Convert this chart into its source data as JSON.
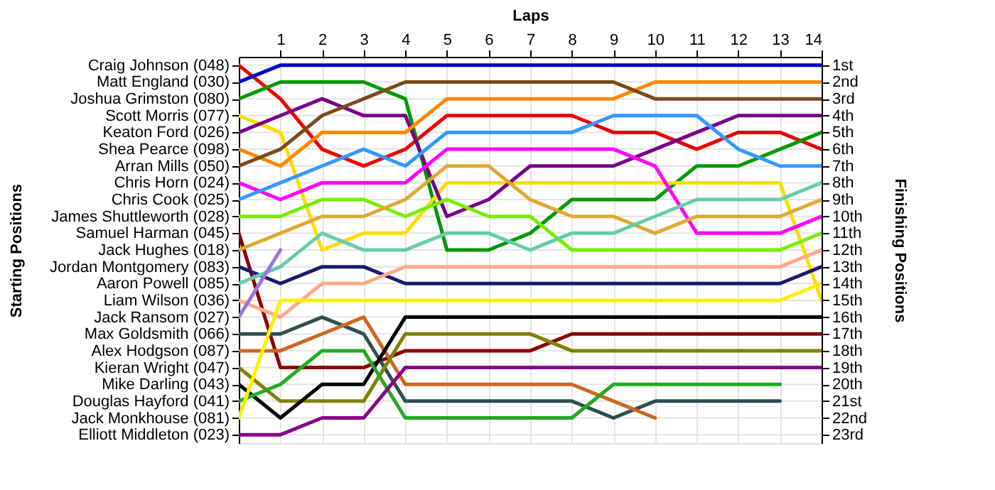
{
  "chart_data": {
    "type": "line",
    "xlabel": "Laps",
    "ylabel": "Finishing Positions",
    "annotations": [
      "Starting Positions"
    ],
    "x": [
      0,
      1,
      2,
      3,
      4,
      5,
      6,
      7,
      8,
      9,
      10,
      11,
      12,
      13,
      14
    ],
    "xlim": [
      0,
      14
    ],
    "xticks": [
      1,
      2,
      3,
      4,
      5,
      6,
      7,
      8,
      9,
      10,
      11,
      12,
      13,
      14
    ],
    "ylim": [
      23.5,
      0.5
    ],
    "y_categories": [
      "Craig Johnson (048)",
      "Matt England (030)",
      "Joshua Grimston (080)",
      "Scott Morris (077)",
      "Keaton Ford (026)",
      "Shea Pearce (098)",
      "Arran Mills (050)",
      "Chris Horn (024)",
      "Chris Cook (025)",
      "James Shuttleworth (028)",
      "Samuel Harman (045)",
      "Jack Hughes (018)",
      "Jordan Montgomery (083)",
      "Aaron Powell (085)",
      "Liam Wilson (036)",
      "Jack Ransom (027)",
      "Max Goldsmith (066)",
      "Alex Hodgson (087)",
      "Kieran Wright (047)",
      "Mike Darling (043)",
      "Douglas Hayford (041)",
      "Jack Monkhouse (081)",
      "Elliott Middleton (023)"
    ],
    "yticks": [
      {
        "value": 1,
        "label": "1st"
      },
      {
        "value": 2,
        "label": "2nd"
      },
      {
        "value": 3,
        "label": "3rd"
      },
      {
        "value": 4,
        "label": "4th"
      },
      {
        "value": 5,
        "label": "5th"
      },
      {
        "value": 6,
        "label": "6th"
      },
      {
        "value": 7,
        "label": "7th"
      },
      {
        "value": 8,
        "label": "8th"
      },
      {
        "value": 9,
        "label": "9th"
      },
      {
        "value": 10,
        "label": "10th"
      },
      {
        "value": 11,
        "label": "11th"
      },
      {
        "value": 12,
        "label": "12th"
      },
      {
        "value": 13,
        "label": "13th"
      },
      {
        "value": 14,
        "label": "14th"
      },
      {
        "value": 15,
        "label": "15th"
      },
      {
        "value": 16,
        "label": "16th"
      },
      {
        "value": 17,
        "label": "17th"
      },
      {
        "value": 18,
        "label": "18th"
      },
      {
        "value": 19,
        "label": "19th"
      },
      {
        "value": 20,
        "label": "20th"
      },
      {
        "value": 21,
        "label": "21st"
      },
      {
        "value": 22,
        "label": "22nd"
      },
      {
        "value": 23,
        "label": "23rd"
      }
    ],
    "grid": true,
    "series": [
      {
        "color": "#ee0000",
        "values": [
          1,
          3,
          6,
          7,
          6,
          4,
          4,
          4,
          4,
          5,
          5,
          6,
          5,
          5,
          6
        ]
      },
      {
        "color": "#0000cc",
        "values": [
          2,
          1,
          1,
          1,
          1,
          1,
          1,
          1,
          1,
          1,
          1,
          1,
          1,
          1,
          1
        ]
      },
      {
        "color": "#009900",
        "values": [
          3,
          2,
          2,
          2,
          3,
          12,
          12,
          11,
          9,
          9,
          9,
          7,
          7,
          6,
          5
        ]
      },
      {
        "color": "#ffdd00",
        "values": [
          4,
          5,
          12,
          11,
          11,
          8,
          8,
          8,
          8,
          8,
          8,
          8,
          8,
          8,
          15
        ]
      },
      {
        "color": "#770088",
        "values": [
          5,
          4,
          3,
          4,
          4,
          10,
          9,
          7,
          7,
          7,
          6,
          5,
          4,
          4,
          4
        ]
      },
      {
        "color": "#ff8800",
        "values": [
          6,
          7,
          5,
          5,
          5,
          3,
          3,
          3,
          3,
          3,
          2,
          2,
          2,
          2,
          2
        ]
      },
      {
        "color": "#7a4a1a",
        "values": [
          7,
          6,
          4,
          3,
          2,
          2,
          2,
          2,
          2,
          2,
          3,
          3,
          3,
          3,
          3
        ]
      },
      {
        "color": "#ff00ff",
        "values": [
          8,
          9,
          8,
          8,
          8,
          6,
          6,
          6,
          6,
          6,
          7,
          11,
          11,
          11,
          10
        ]
      },
      {
        "color": "#3399ff",
        "values": [
          9,
          8,
          7,
          6,
          7,
          5,
          5,
          5,
          5,
          4,
          4,
          4,
          6,
          7,
          7
        ]
      },
      {
        "color": "#77ee00",
        "values": [
          10,
          10,
          9,
          9,
          10,
          9,
          10,
          10,
          12,
          12,
          12,
          12,
          12,
          12,
          11
        ]
      },
      {
        "color": "#8b0000",
        "values": [
          11,
          19,
          19,
          19,
          18,
          18,
          18,
          18,
          17,
          17,
          17,
          17,
          17,
          17,
          17
        ]
      },
      {
        "color": "#ddaa33",
        "values": [
          12,
          11,
          10,
          10,
          9,
          7,
          7,
          9,
          10,
          10,
          11,
          10,
          10,
          10,
          9
        ]
      },
      {
        "color": "#1a1a6e",
        "values": [
          13,
          14,
          13,
          13,
          14,
          14,
          14,
          14,
          14,
          14,
          14,
          14,
          14,
          14,
          13
        ]
      },
      {
        "color": "#66ccaa",
        "values": [
          14,
          13,
          11,
          12,
          12,
          11,
          11,
          12,
          11,
          11,
          10,
          9,
          9,
          9,
          8
        ]
      },
      {
        "color": "#ffaa88",
        "values": [
          15,
          16,
          14,
          14,
          13,
          13,
          13,
          13,
          13,
          13,
          13,
          13,
          13,
          13,
          12
        ]
      },
      {
        "color": "#9977dd",
        "values": [
          16,
          12,
          null,
          null,
          null,
          null,
          null,
          null,
          null,
          null,
          null,
          null,
          null,
          null,
          null
        ]
      },
      {
        "color": "#2f4f4f",
        "values": [
          17,
          17,
          16,
          17,
          21,
          21,
          21,
          21,
          21,
          22,
          21,
          21,
          21,
          21,
          null
        ]
      },
      {
        "color": "#cc6622",
        "values": [
          18,
          18,
          17,
          16,
          20,
          20,
          20,
          20,
          20,
          21,
          22,
          null,
          null,
          null,
          null
        ]
      },
      {
        "color": "#808000",
        "values": [
          19,
          21,
          21,
          21,
          17,
          17,
          17,
          17,
          18,
          18,
          18,
          18,
          18,
          18,
          18
        ]
      },
      {
        "color": "#000000",
        "values": [
          20,
          22,
          20,
          20,
          16,
          16,
          16,
          16,
          16,
          16,
          16,
          16,
          16,
          16,
          16
        ]
      },
      {
        "color": "#22aa22",
        "values": [
          21,
          20,
          18,
          18,
          22,
          22,
          22,
          22,
          22,
          20,
          20,
          20,
          20,
          20,
          null
        ]
      },
      {
        "color": "#ffee00",
        "values": [
          22,
          15,
          15,
          15,
          15,
          15,
          15,
          15,
          15,
          15,
          15,
          15,
          15,
          15,
          14
        ]
      },
      {
        "color": "#880088",
        "values": [
          23,
          23,
          22,
          22,
          19,
          19,
          19,
          19,
          19,
          19,
          19,
          19,
          19,
          19,
          19
        ]
      }
    ]
  }
}
